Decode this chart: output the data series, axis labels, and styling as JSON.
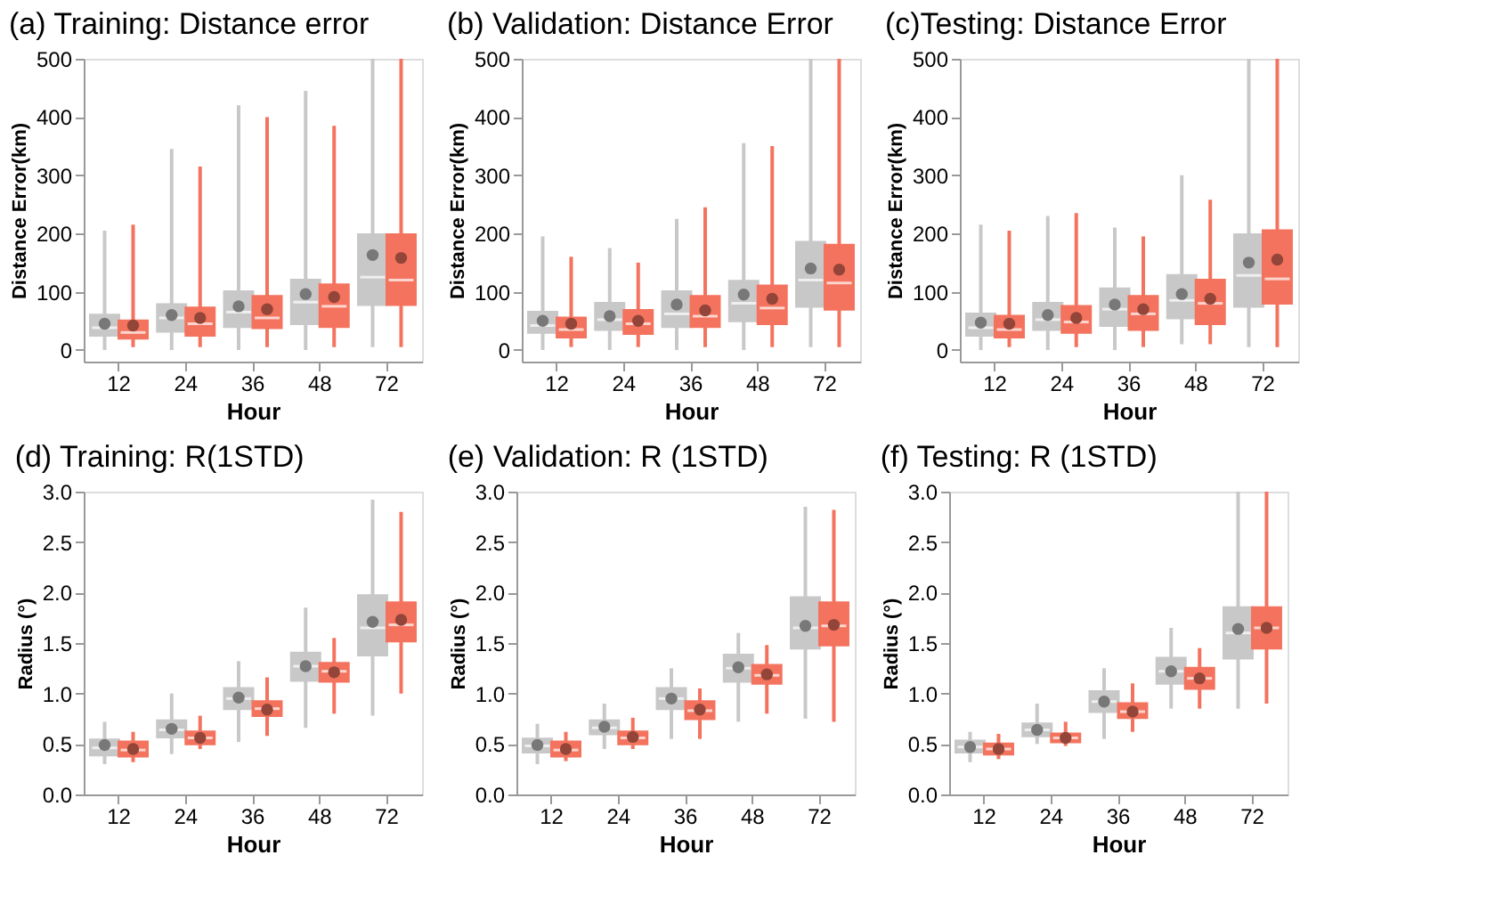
{
  "chart_data": [
    {
      "type": "box",
      "title": "(a) Training: Distance error",
      "xlabel": "Hour",
      "ylabel": "Distance Error(km)",
      "categories": [
        "12",
        "24",
        "36",
        "48",
        "72"
      ],
      "ylim": [
        -20,
        500
      ],
      "yticks": [
        0,
        100,
        200,
        300,
        400,
        500
      ],
      "grid": false,
      "legend": false,
      "series": [
        {
          "color": "#c8c8c8",
          "boxes": [
            {
              "low": 0,
              "q1": 25,
              "median": 38,
              "q3": 60,
              "high": 205,
              "mean": 45
            },
            {
              "low": 0,
              "q1": 32,
              "median": 55,
              "q3": 78,
              "high": 345,
              "mean": 60
            },
            {
              "low": 0,
              "q1": 40,
              "median": 65,
              "q3": 100,
              "high": 420,
              "mean": 75
            },
            {
              "low": 0,
              "q1": 45,
              "median": 82,
              "q3": 120,
              "high": 445,
              "mean": 96
            },
            {
              "low": 5,
              "q1": 78,
              "median": 125,
              "q3": 198,
              "high": 500,
              "mean": 163
            }
          ]
        },
        {
          "color": "#f4735e",
          "boxes": [
            {
              "low": 5,
              "q1": 20,
              "median": 30,
              "q3": 50,
              "high": 215,
              "mean": 42
            },
            {
              "low": 5,
              "q1": 25,
              "median": 45,
              "q3": 72,
              "high": 315,
              "mean": 55
            },
            {
              "low": 5,
              "q1": 38,
              "median": 55,
              "q3": 92,
              "high": 400,
              "mean": 70
            },
            {
              "low": 5,
              "q1": 40,
              "median": 75,
              "q3": 112,
              "high": 385,
              "mean": 91
            },
            {
              "low": 5,
              "q1": 78,
              "median": 120,
              "q3": 198,
              "high": 500,
              "mean": 158
            }
          ]
        }
      ]
    },
    {
      "type": "box",
      "title": "(b) Validation: Distance Error",
      "xlabel": "Hour",
      "ylabel": "Distance Error(km)",
      "categories": [
        "12",
        "24",
        "36",
        "48",
        "72"
      ],
      "ylim": [
        -20,
        500
      ],
      "yticks": [
        0,
        100,
        200,
        300,
        400,
        500
      ],
      "grid": false,
      "legend": false,
      "series": [
        {
          "color": "#c8c8c8",
          "boxes": [
            {
              "low": 0,
              "q1": 30,
              "median": 42,
              "q3": 65,
              "high": 195,
              "mean": 50
            },
            {
              "low": 0,
              "q1": 35,
              "median": 52,
              "q3": 80,
              "high": 175,
              "mean": 58
            },
            {
              "low": 0,
              "q1": 40,
              "median": 62,
              "q3": 100,
              "high": 225,
              "mean": 78
            },
            {
              "low": 0,
              "q1": 50,
              "median": 80,
              "q3": 118,
              "high": 355,
              "mean": 95
            },
            {
              "low": 5,
              "q1": 75,
              "median": 120,
              "q3": 185,
              "high": 500,
              "mean": 140
            }
          ]
        },
        {
          "color": "#f4735e",
          "boxes": [
            {
              "low": 5,
              "q1": 22,
              "median": 35,
              "q3": 55,
              "high": 160,
              "mean": 45
            },
            {
              "low": 5,
              "q1": 28,
              "median": 45,
              "q3": 68,
              "high": 150,
              "mean": 50
            },
            {
              "low": 5,
              "q1": 40,
              "median": 58,
              "q3": 92,
              "high": 245,
              "mean": 68
            },
            {
              "low": 5,
              "q1": 45,
              "median": 72,
              "q3": 110,
              "high": 350,
              "mean": 88
            },
            {
              "low": 5,
              "q1": 70,
              "median": 115,
              "q3": 180,
              "high": 500,
              "mean": 138
            }
          ]
        }
      ]
    },
    {
      "type": "box",
      "title": "(c)Testing: Distance Error",
      "xlabel": "Hour",
      "ylabel": "Distance Error(km)",
      "categories": [
        "12",
        "24",
        "36",
        "48",
        "72"
      ],
      "ylim": [
        -20,
        500
      ],
      "yticks": [
        0,
        100,
        200,
        300,
        400,
        500
      ],
      "grid": false,
      "legend": false,
      "series": [
        {
          "color": "#c8c8c8",
          "boxes": [
            {
              "low": 0,
              "q1": 25,
              "median": 38,
              "q3": 62,
              "high": 215,
              "mean": 47
            },
            {
              "low": 0,
              "q1": 35,
              "median": 52,
              "q3": 80,
              "high": 230,
              "mean": 60
            },
            {
              "low": 0,
              "q1": 42,
              "median": 70,
              "q3": 105,
              "high": 210,
              "mean": 78
            },
            {
              "low": 10,
              "q1": 55,
              "median": 85,
              "q3": 128,
              "high": 300,
              "mean": 96
            },
            {
              "low": 5,
              "q1": 75,
              "median": 128,
              "q3": 198,
              "high": 500,
              "mean": 150
            }
          ]
        },
        {
          "color": "#f4735e",
          "boxes": [
            {
              "low": 5,
              "q1": 22,
              "median": 35,
              "q3": 58,
              "high": 205,
              "mean": 45
            },
            {
              "low": 5,
              "q1": 30,
              "median": 48,
              "q3": 75,
              "high": 235,
              "mean": 55
            },
            {
              "low": 5,
              "q1": 35,
              "median": 62,
              "q3": 92,
              "high": 195,
              "mean": 70
            },
            {
              "low": 10,
              "q1": 45,
              "median": 80,
              "q3": 120,
              "high": 258,
              "mean": 88
            },
            {
              "low": 5,
              "q1": 80,
              "median": 122,
              "q3": 205,
              "high": 500,
              "mean": 155
            }
          ]
        }
      ]
    },
    {
      "type": "box",
      "title": "(d) Training: R(1STD)",
      "xlabel": "Hour",
      "ylabel": "Radius (°)",
      "categories": [
        "12",
        "24",
        "36",
        "48",
        "72"
      ],
      "ylim": [
        0,
        3
      ],
      "yticks": [
        {
          "value": 0,
          "label": "0.0"
        },
        {
          "value": 0.5,
          "label": "0.5"
        },
        {
          "value": 1,
          "label": "1.0"
        },
        {
          "value": 1.5,
          "label": "1.5"
        },
        {
          "value": 2,
          "label": "2.0"
        },
        {
          "value": 2.5,
          "label": "2.5"
        },
        {
          "value": 3,
          "label": "3.0"
        }
      ],
      "grid": false,
      "legend": false,
      "series": [
        {
          "color": "#c8c8c8",
          "boxes": [
            {
              "low": 0.3,
              "q1": 0.39,
              "median": 0.46,
              "q3": 0.54,
              "high": 0.72,
              "mean": 0.49
            },
            {
              "low": 0.4,
              "q1": 0.57,
              "median": 0.64,
              "q3": 0.73,
              "high": 1.0,
              "mean": 0.65
            },
            {
              "low": 0.52,
              "q1": 0.85,
              "median": 0.95,
              "q3": 1.05,
              "high": 1.32,
              "mean": 0.96
            },
            {
              "low": 0.66,
              "q1": 1.13,
              "median": 1.27,
              "q3": 1.4,
              "high": 1.85,
              "mean": 1.27
            },
            {
              "low": 0.78,
              "q1": 1.38,
              "median": 1.65,
              "q3": 1.97,
              "high": 2.92,
              "mean": 1.71
            }
          ]
        },
        {
          "color": "#f4735e",
          "boxes": [
            {
              "low": 0.32,
              "q1": 0.38,
              "median": 0.44,
              "q3": 0.52,
              "high": 0.62,
              "mean": 0.45
            },
            {
              "low": 0.45,
              "q1": 0.5,
              "median": 0.56,
              "q3": 0.62,
              "high": 0.78,
              "mean": 0.56
            },
            {
              "low": 0.58,
              "q1": 0.78,
              "median": 0.85,
              "q3": 0.92,
              "high": 1.16,
              "mean": 0.84
            },
            {
              "low": 0.8,
              "q1": 1.12,
              "median": 1.22,
              "q3": 1.3,
              "high": 1.55,
              "mean": 1.21
            },
            {
              "low": 1.0,
              "q1": 1.52,
              "median": 1.68,
              "q3": 1.9,
              "high": 2.8,
              "mean": 1.73
            }
          ]
        }
      ]
    },
    {
      "type": "box",
      "title": "(e) Validation: R (1STD)",
      "xlabel": "Hour",
      "ylabel": "Radius (°)",
      "categories": [
        "12",
        "24",
        "36",
        "48",
        "72"
      ],
      "ylim": [
        0,
        3
      ],
      "yticks": [
        {
          "value": 0,
          "label": "0.0"
        },
        {
          "value": 0.5,
          "label": "0.5"
        },
        {
          "value": 1,
          "label": "1.0"
        },
        {
          "value": 1.5,
          "label": "1.5"
        },
        {
          "value": 2,
          "label": "2.0"
        },
        {
          "value": 2.5,
          "label": "2.5"
        },
        {
          "value": 3,
          "label": "3.0"
        }
      ],
      "grid": false,
      "legend": false,
      "series": [
        {
          "color": "#c8c8c8",
          "boxes": [
            {
              "low": 0.3,
              "q1": 0.42,
              "median": 0.48,
              "q3": 0.55,
              "high": 0.7,
              "mean": 0.49
            },
            {
              "low": 0.45,
              "q1": 0.6,
              "median": 0.66,
              "q3": 0.73,
              "high": 0.9,
              "mean": 0.67
            },
            {
              "low": 0.55,
              "q1": 0.85,
              "median": 0.95,
              "q3": 1.05,
              "high": 1.25,
              "mean": 0.95
            },
            {
              "low": 0.72,
              "q1": 1.12,
              "median": 1.25,
              "q3": 1.38,
              "high": 1.6,
              "mean": 1.26
            },
            {
              "low": 0.75,
              "q1": 1.45,
              "median": 1.65,
              "q3": 1.95,
              "high": 2.85,
              "mean": 1.67
            }
          ]
        },
        {
          "color": "#f4735e",
          "boxes": [
            {
              "low": 0.33,
              "q1": 0.38,
              "median": 0.44,
              "q3": 0.52,
              "high": 0.62,
              "mean": 0.45
            },
            {
              "low": 0.45,
              "q1": 0.5,
              "median": 0.56,
              "q3": 0.62,
              "high": 0.76,
              "mean": 0.57
            },
            {
              "low": 0.55,
              "q1": 0.75,
              "median": 0.83,
              "q3": 0.92,
              "high": 1.05,
              "mean": 0.84
            },
            {
              "low": 0.8,
              "q1": 1.1,
              "median": 1.18,
              "q3": 1.28,
              "high": 1.48,
              "mean": 1.19
            },
            {
              "low": 0.72,
              "q1": 1.48,
              "median": 1.67,
              "q3": 1.9,
              "high": 2.82,
              "mean": 1.68
            }
          ]
        }
      ]
    },
    {
      "type": "box",
      "title": "(f) Testing: R (1STD)",
      "xlabel": "Hour",
      "ylabel": "Radius (°)",
      "categories": [
        "12",
        "24",
        "36",
        "48",
        "72"
      ],
      "ylim": [
        0,
        3
      ],
      "yticks": [
        {
          "value": 0,
          "label": "0.0"
        },
        {
          "value": 0.5,
          "label": "0.5"
        },
        {
          "value": 1,
          "label": "1.0"
        },
        {
          "value": 1.5,
          "label": "1.5"
        },
        {
          "value": 2,
          "label": "2.0"
        },
        {
          "value": 2.5,
          "label": "2.5"
        },
        {
          "value": 3,
          "label": "3.0"
        }
      ],
      "grid": false,
      "legend": false,
      "series": [
        {
          "color": "#c8c8c8",
          "boxes": [
            {
              "low": 0.32,
              "q1": 0.42,
              "median": 0.47,
              "q3": 0.53,
              "high": 0.62,
              "mean": 0.47
            },
            {
              "low": 0.5,
              "q1": 0.58,
              "median": 0.64,
              "q3": 0.7,
              "high": 0.9,
              "mean": 0.64
            },
            {
              "low": 0.55,
              "q1": 0.82,
              "median": 0.92,
              "q3": 1.02,
              "high": 1.25,
              "mean": 0.92
            },
            {
              "low": 0.85,
              "q1": 1.1,
              "median": 1.22,
              "q3": 1.35,
              "high": 1.65,
              "mean": 1.22
            },
            {
              "low": 0.85,
              "q1": 1.35,
              "median": 1.6,
              "q3": 1.85,
              "high": 3.0,
              "mean": 1.64
            }
          ]
        },
        {
          "color": "#f4735e",
          "boxes": [
            {
              "low": 0.35,
              "q1": 0.4,
              "median": 0.45,
              "q3": 0.5,
              "high": 0.6,
              "mean": 0.45
            },
            {
              "low": 0.48,
              "q1": 0.52,
              "median": 0.56,
              "q3": 0.6,
              "high": 0.72,
              "mean": 0.56
            },
            {
              "low": 0.62,
              "q1": 0.76,
              "median": 0.82,
              "q3": 0.9,
              "high": 1.1,
              "mean": 0.82
            },
            {
              "low": 0.85,
              "q1": 1.05,
              "median": 1.15,
              "q3": 1.25,
              "high": 1.45,
              "mean": 1.15
            },
            {
              "low": 0.9,
              "q1": 1.45,
              "median": 1.65,
              "q3": 1.85,
              "high": 3.0,
              "mean": 1.65
            }
          ]
        }
      ]
    }
  ]
}
